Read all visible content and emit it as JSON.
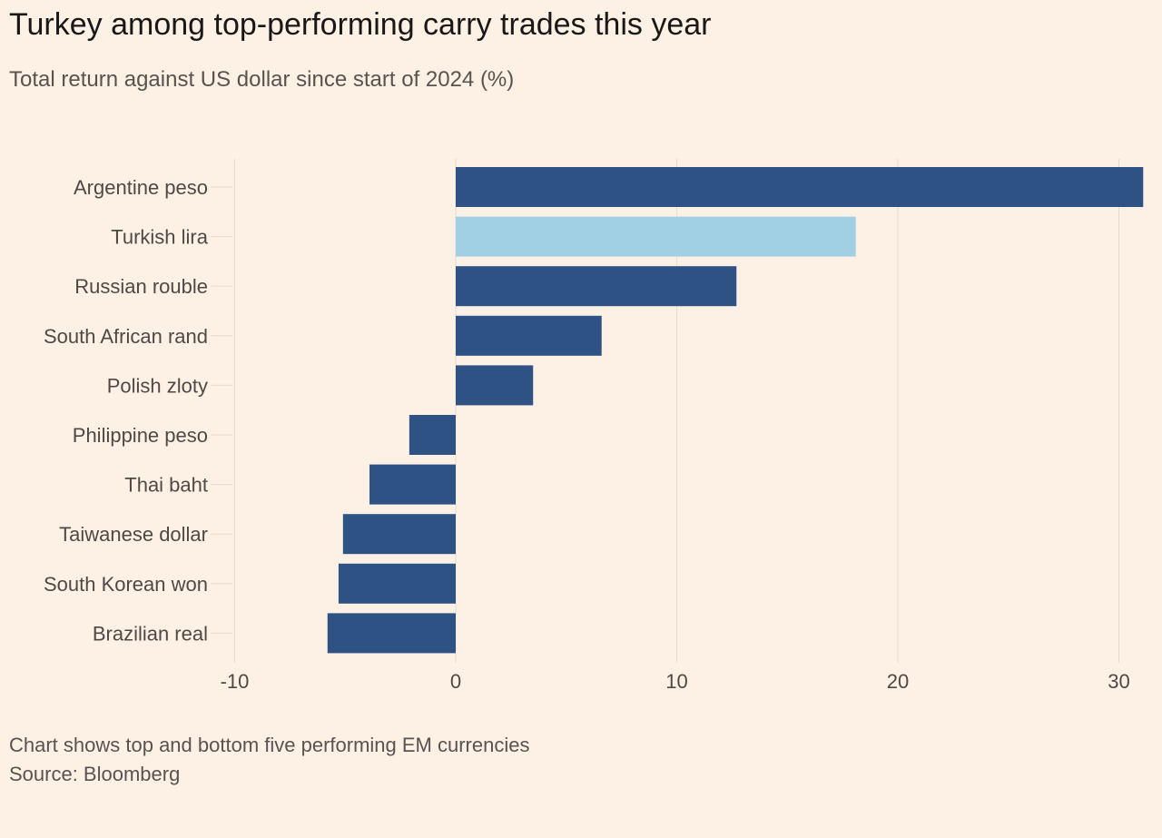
{
  "chart_data": {
    "type": "bar",
    "orientation": "horizontal",
    "title": "Turkey among top-performing carry trades this year",
    "subtitle": "Total return against US dollar since start of 2024 (%)",
    "categories": [
      "Argentine peso",
      "Turkish lira",
      "Russian rouble",
      "South African rand",
      "Polish zloty",
      "Philippine peso",
      "Thai baht",
      "Taiwanese dollar",
      "South Korean won",
      "Brazilian real"
    ],
    "values": [
      31.1,
      18.1,
      12.7,
      6.6,
      3.5,
      -2.1,
      -3.9,
      -5.1,
      -5.3,
      -5.8
    ],
    "highlight": "Turkish lira",
    "xlim": [
      -10,
      31.5
    ],
    "xticks": [
      "-10",
      "0",
      "10",
      "20",
      "30"
    ],
    "grid": true,
    "colors": {
      "bar": "#2e5284",
      "highlight": "#a1d0e5",
      "background": "#fdf1e6",
      "grid": "#e6dcd3"
    },
    "note": "Chart shows top and bottom five performing EM currencies",
    "source": "Source: Bloomberg"
  }
}
